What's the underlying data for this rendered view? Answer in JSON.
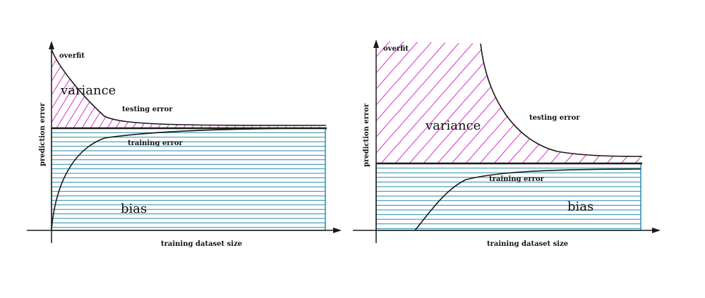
{
  "colors": {
    "variance": "#d633c9",
    "bias": "#2a8bab",
    "curve": "#1a1a1a",
    "axis": "#1a1a1a",
    "background": "#ffffff"
  },
  "left_panel": {
    "overfit_label": "overfit",
    "variance_label": "variance",
    "testing_error_label": "testing error",
    "training_error_label": "training error",
    "bias_label": "bias",
    "y_axis_label": "prediction error",
    "x_axis_label": "training dataset size"
  },
  "right_panel": {
    "overfit_label": "overfit",
    "variance_label": "variance",
    "testing_error_label": "testing error",
    "training_error_label": "training error",
    "bias_label": "bias",
    "y_axis_label": "prediction error",
    "x_axis_label": "training dataset size"
  }
}
